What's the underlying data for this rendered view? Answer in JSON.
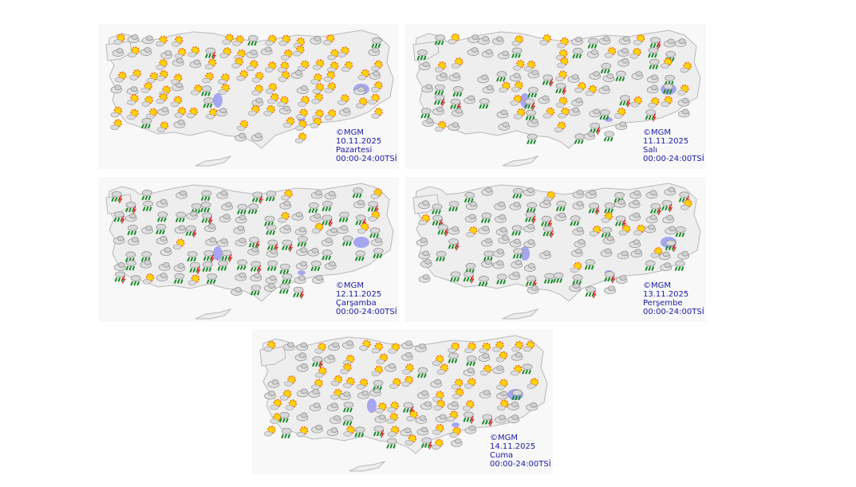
{
  "maps": [
    {
      "copyright": "©MGM",
      "date": "10.11.2025",
      "day": "Pazartesi",
      "period": "00:00-24:00TSİ"
    },
    {
      "copyright": "©MGM",
      "date": "11.11.2025",
      "day": "Salı",
      "period": "00:00-24:00TSİ"
    },
    {
      "copyright": "©MGM",
      "date": "12.11.2025",
      "day": "Çarşamba",
      "period": "00:00-24:00TSİ"
    },
    {
      "copyright": "©MGM",
      "date": "13.11.2025",
      "day": "Perşembe",
      "period": "00:00-24:00TSİ"
    },
    {
      "copyright": "©MGM",
      "date": "14.11.2025",
      "day": "Cuma",
      "period": "00:00-24:00TSİ"
    }
  ]
}
